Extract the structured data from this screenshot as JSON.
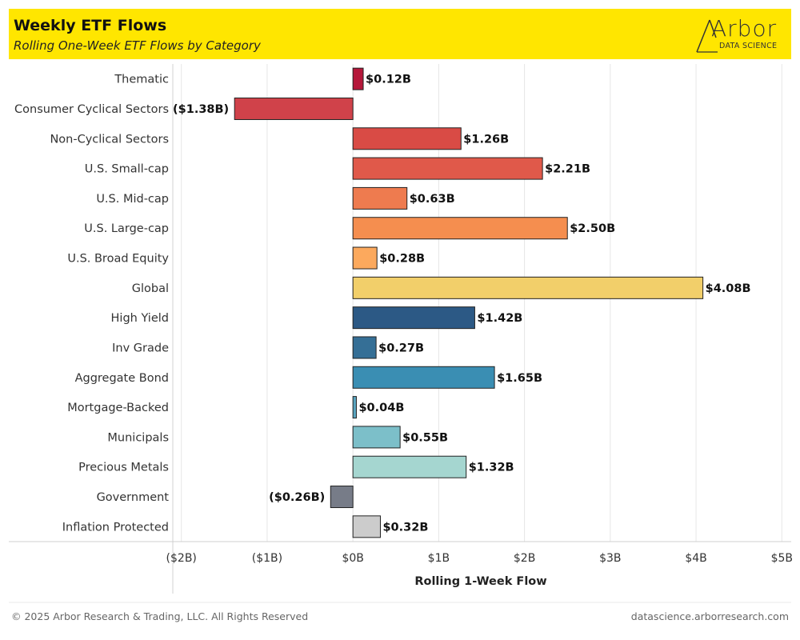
{
  "header": {
    "title": "Weekly ETF Flows",
    "subtitle": "Rolling One-Week ETF Flows by Category",
    "logo_word": "Arbor",
    "logo_sub": "DATA SCIENCE"
  },
  "footer": {
    "copyright": "© 2025 Arbor Research & Trading, LLC. All Rights Reserved",
    "url": "datascience.arborresearch.com"
  },
  "chart_data": {
    "type": "bar",
    "orientation": "horizontal",
    "xlabel": "Rolling 1-Week Flow",
    "ylabel": "",
    "xlim": [
      -2.1,
      5.1
    ],
    "x_ticks": [
      -2,
      -1,
      0,
      1,
      2,
      3,
      4,
      5
    ],
    "x_tick_labels": [
      "($2B)",
      "($1B)",
      "$0B",
      "$1B",
      "$2B",
      "$3B",
      "$4B",
      "$5B"
    ],
    "grid": "vertical",
    "categories": [
      "Thematic",
      "Consumer Cyclical Sectors",
      "Non-Cyclical Sectors",
      "U.S. Small-cap",
      "U.S. Mid-cap",
      "U.S. Large-cap",
      "U.S. Broad Equity",
      "Global",
      "High Yield",
      "Inv Grade",
      "Aggregate Bond",
      "Mortgage-Backed",
      "Municipals",
      "Precious Metals",
      "Government",
      "Inflation Protected"
    ],
    "values": [
      0.12,
      -1.38,
      1.26,
      2.21,
      0.63,
      2.5,
      0.28,
      4.08,
      1.42,
      0.27,
      1.65,
      0.04,
      0.55,
      1.32,
      -0.26,
      0.32
    ],
    "value_labels": [
      "$0.12B",
      "($1.38B)",
      "$1.26B",
      "$2.21B",
      "$0.63B",
      "$2.50B",
      "$0.28B",
      "$4.08B",
      "$1.42B",
      "$0.27B",
      "$1.65B",
      "$0.04B",
      "$0.55B",
      "$1.32B",
      "($0.26B)",
      "$0.32B"
    ],
    "colors": [
      "#b5173a",
      "#d0424a",
      "#d94b45",
      "#e0594a",
      "#ee7b4f",
      "#f58e4f",
      "#fca95d",
      "#f2cf6a",
      "#2c5985",
      "#356f96",
      "#3a8eb3",
      "#5aa5c0",
      "#7cbfc9",
      "#a5d6d0",
      "#777c88",
      "#cccccc"
    ]
  }
}
